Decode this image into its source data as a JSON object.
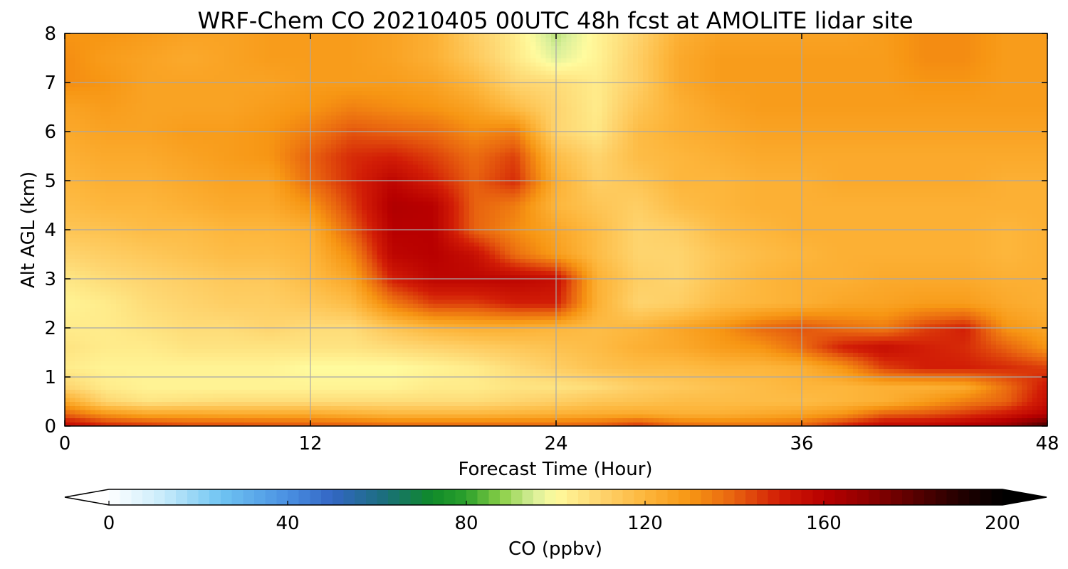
{
  "chart_data": {
    "type": "heatmap",
    "title": "WRF-Chem CO  20210405 00UTC 48h fcst at AMOLITE lidar site",
    "xlabel": "Forecast Time (Hour)",
    "ylabel": "Alt AGL (km)",
    "xlim": [
      0,
      48
    ],
    "ylim": [
      0,
      8
    ],
    "xticks": [
      0,
      12,
      24,
      36,
      48
    ],
    "yticks": [
      0,
      1,
      2,
      3,
      4,
      5,
      6,
      7,
      8
    ],
    "grid": true,
    "x_hours": [
      0,
      2,
      4,
      6,
      8,
      10,
      12,
      14,
      16,
      18,
      20,
      22,
      24,
      26,
      28,
      30,
      32,
      34,
      36,
      38,
      40,
      42,
      44,
      46,
      48
    ],
    "altitudes_km": [
      0,
      0.25,
      0.5,
      0.8,
      1.2,
      1.6,
      2,
      2.5,
      3,
      3.5,
      4,
      4.5,
      5,
      5.5,
      6,
      6.5,
      7,
      7.5,
      8
    ],
    "values_ppbv": [
      [
        158,
        150,
        148,
        145,
        145,
        144,
        143,
        142,
        140,
        140,
        140,
        140,
        140,
        142,
        148,
        140,
        138,
        138,
        140,
        150,
        158,
        158,
        162,
        168,
        185
      ],
      [
        140,
        130,
        125,
        125,
        124,
        124,
        124,
        122,
        120,
        120,
        120,
        121,
        122,
        123,
        124,
        122,
        122,
        124,
        126,
        130,
        140,
        142,
        146,
        152,
        160
      ],
      [
        125,
        110,
        106,
        107,
        108,
        108,
        108,
        108,
        108,
        108,
        108,
        110,
        112,
        115,
        116,
        118,
        118,
        118,
        118,
        120,
        122,
        128,
        135,
        140,
        155
      ],
      [
        110,
        104,
        102,
        102,
        102,
        102,
        102,
        102,
        102,
        104,
        104,
        106,
        106,
        108,
        112,
        114,
        116,
        118,
        120,
        120,
        122,
        122,
        124,
        138,
        152
      ],
      [
        104,
        102,
        102,
        102,
        102,
        102,
        100,
        100,
        100,
        102,
        104,
        108,
        112,
        116,
        118,
        118,
        120,
        120,
        122,
        130,
        145,
        150,
        150,
        148,
        145
      ],
      [
        106,
        104,
        104,
        106,
        106,
        106,
        106,
        106,
        108,
        110,
        112,
        114,
        116,
        118,
        122,
        124,
        128,
        130,
        138,
        150,
        155,
        150,
        148,
        140,
        130
      ],
      [
        104,
        104,
        106,
        108,
        108,
        110,
        108,
        108,
        115,
        120,
        122,
        122,
        120,
        118,
        120,
        125,
        130,
        138,
        142,
        138,
        135,
        145,
        150,
        130,
        125
      ],
      [
        102,
        104,
        108,
        110,
        112,
        112,
        114,
        118,
        135,
        145,
        145,
        150,
        150,
        122,
        110,
        112,
        118,
        120,
        122,
        125,
        126,
        128,
        128,
        124,
        122
      ],
      [
        105,
        108,
        110,
        112,
        114,
        114,
        118,
        125,
        150,
        158,
        158,
        158,
        155,
        122,
        112,
        110,
        116,
        120,
        122,
        122,
        124,
        124,
        124,
        122,
        122
      ],
      [
        110,
        112,
        114,
        116,
        118,
        118,
        120,
        132,
        158,
        160,
        155,
        138,
        128,
        118,
        110,
        110,
        115,
        118,
        120,
        122,
        122,
        122,
        122,
        120,
        122
      ],
      [
        115,
        116,
        118,
        118,
        120,
        120,
        122,
        140,
        160,
        160,
        140,
        132,
        125,
        118,
        110,
        112,
        118,
        120,
        122,
        122,
        122,
        122,
        122,
        120,
        122
      ],
      [
        118,
        120,
        120,
        122,
        124,
        124,
        130,
        145,
        162,
        160,
        140,
        135,
        120,
        115,
        112,
        118,
        120,
        122,
        122,
        122,
        122,
        122,
        122,
        122,
        122
      ],
      [
        120,
        122,
        122,
        124,
        126,
        126,
        138,
        148,
        158,
        150,
        140,
        148,
        122,
        112,
        115,
        120,
        120,
        122,
        122,
        124,
        124,
        124,
        124,
        122,
        122
      ],
      [
        122,
        124,
        124,
        126,
        128,
        130,
        140,
        148,
        150,
        145,
        138,
        145,
        118,
        110,
        118,
        120,
        122,
        124,
        124,
        124,
        124,
        124,
        124,
        124,
        124
      ],
      [
        124,
        126,
        126,
        128,
        128,
        130,
        135,
        142,
        140,
        138,
        132,
        135,
        110,
        105,
        118,
        122,
        124,
        126,
        126,
        126,
        126,
        126,
        126,
        126,
        126
      ],
      [
        126,
        128,
        126,
        126,
        126,
        128,
        130,
        134,
        132,
        130,
        126,
        118,
        110,
        104,
        115,
        122,
        126,
        128,
        128,
        128,
        128,
        128,
        128,
        128,
        128
      ],
      [
        132,
        130,
        126,
        126,
        126,
        126,
        128,
        128,
        128,
        126,
        120,
        110,
        108,
        104,
        112,
        124,
        128,
        128,
        128,
        128,
        128,
        130,
        130,
        128,
        128
      ],
      [
        132,
        128,
        126,
        124,
        126,
        128,
        128,
        128,
        126,
        122,
        114,
        105,
        96,
        102,
        112,
        124,
        128,
        128,
        128,
        128,
        128,
        132,
        132,
        128,
        128
      ],
      [
        130,
        130,
        128,
        126,
        126,
        128,
        128,
        128,
        126,
        122,
        112,
        104,
        92,
        102,
        110,
        122,
        126,
        126,
        126,
        126,
        128,
        132,
        132,
        128,
        128
      ]
    ],
    "colorbar": {
      "label": "CO  (ppbv)",
      "min": 0,
      "max": 200,
      "ticks": [
        0,
        40,
        80,
        120,
        160,
        200
      ],
      "extend": "both",
      "stops": [
        {
          "v": 0,
          "c": "#ffffff"
        },
        {
          "v": 12,
          "c": "#c9ecfb"
        },
        {
          "v": 25,
          "c": "#6fc4f2"
        },
        {
          "v": 40,
          "c": "#4a90e2"
        },
        {
          "v": 50,
          "c": "#3366c4"
        },
        {
          "v": 62,
          "c": "#1a6f7a"
        },
        {
          "v": 72,
          "c": "#0f8a2a"
        },
        {
          "v": 80,
          "c": "#2ca02c"
        },
        {
          "v": 88,
          "c": "#8cd048"
        },
        {
          "v": 95,
          "c": "#d8ef9a"
        },
        {
          "v": 100,
          "c": "#fffb9e"
        },
        {
          "v": 110,
          "c": "#fed46e"
        },
        {
          "v": 120,
          "c": "#fdb63c"
        },
        {
          "v": 130,
          "c": "#f79613"
        },
        {
          "v": 140,
          "c": "#e8620f"
        },
        {
          "v": 150,
          "c": "#d21d06"
        },
        {
          "v": 160,
          "c": "#b80000"
        },
        {
          "v": 170,
          "c": "#8f0000"
        },
        {
          "v": 180,
          "c": "#5a0000"
        },
        {
          "v": 190,
          "c": "#250000"
        },
        {
          "v": 200,
          "c": "#000000"
        }
      ]
    }
  }
}
